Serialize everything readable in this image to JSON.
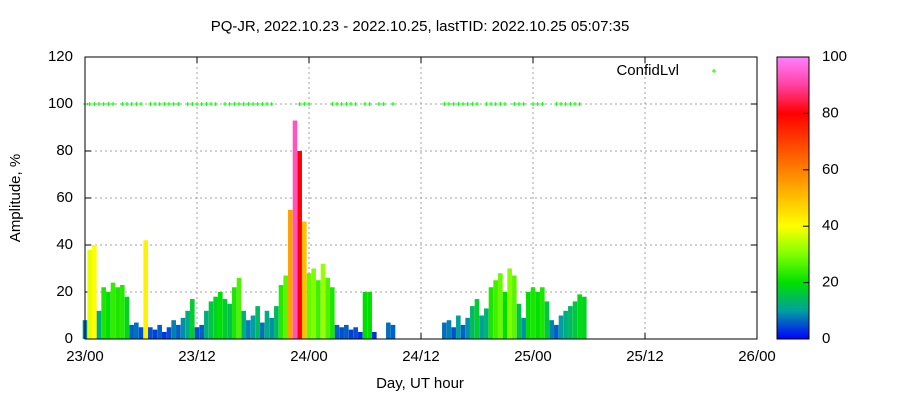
{
  "chart_data": {
    "type": "impulses",
    "title": "PQ-JR, 2022.10.23 - 2022.10.25, lastTID: 2022.10.25 05:07:35",
    "x_label": "Day, UT hour",
    "y_label": "Amplitude, %",
    "xlim": [
      0,
      72
    ],
    "xticks": [
      {
        "value": 0,
        "label": "23/00"
      },
      {
        "value": 12,
        "label": "23/12"
      },
      {
        "value": 24,
        "label": "24/00"
      },
      {
        "value": 36,
        "label": "24/12"
      },
      {
        "value": 48,
        "label": "25/00"
      },
      {
        "value": 60,
        "label": "25/12"
      },
      {
        "value": 72,
        "label": "26/00"
      }
    ],
    "ylim": [
      0,
      120
    ],
    "yticks": [
      0,
      20,
      40,
      60,
      80,
      100,
      120
    ],
    "grid": true,
    "cblim": [
      0,
      100
    ],
    "cbticks": [
      0,
      20,
      40,
      60,
      80,
      100
    ],
    "palette": [
      "#0000ff",
      "#00a0a0",
      "#00e000",
      "#80ff00",
      "#ffff00",
      "#ffc000",
      "#ff8000",
      "#ff4000",
      "#ff0000",
      "#ff40a0",
      "#ff80ff"
    ],
    "legend": "top-right",
    "series": [
      {
        "style": "impulses",
        "color": "palette",
        "x": [
          0,
          0.5,
          1,
          1.5,
          2,
          2.5,
          3,
          3.5,
          4,
          4.5,
          5,
          5.5,
          6,
          6.5,
          7,
          7.5,
          8,
          8.5,
          9,
          9.5,
          10,
          10.5,
          11,
          11.5,
          12,
          12.5,
          13,
          13.5,
          14,
          14.5,
          15,
          15.5,
          16,
          16.5,
          17,
          17.5,
          18,
          18.5,
          19,
          19.5,
          20,
          20.5,
          21,
          21.5,
          22,
          22.5,
          23,
          23.5,
          24,
          24.5,
          25,
          25.5,
          26,
          26.5,
          27,
          27.5,
          28,
          28.5,
          29,
          29.5,
          30,
          30.5,
          31,
          32.5,
          33,
          38.5,
          39,
          39.5,
          40,
          40.5,
          41,
          41.5,
          42,
          42.5,
          43,
          43.5,
          44,
          44.5,
          45,
          45.5,
          46,
          46.5,
          47,
          47.5,
          48,
          48.5,
          49,
          49.5,
          50,
          50.5,
          51,
          51.5,
          52,
          52.5,
          53,
          53.5
        ],
        "values": [
          8,
          38,
          40,
          12,
          22,
          20,
          24,
          22,
          23,
          18,
          6,
          7,
          5,
          42,
          5,
          4,
          6,
          3,
          5,
          8,
          6,
          9,
          12,
          17,
          5,
          6,
          12,
          16,
          18,
          20,
          17,
          15,
          22,
          26,
          12,
          8,
          10,
          14,
          7,
          12,
          9,
          14,
          23,
          27,
          55,
          93,
          80,
          50,
          28,
          30,
          25,
          32,
          26,
          22,
          6,
          5,
          6,
          4,
          5,
          3,
          20,
          20,
          3,
          7,
          6,
          7,
          8,
          5,
          10,
          6,
          9,
          14,
          17,
          10,
          13,
          22,
          25,
          28,
          20,
          30,
          27,
          15,
          9,
          20,
          22,
          20,
          22,
          16,
          8,
          6,
          10,
          12,
          14,
          16,
          19,
          18
        ]
      },
      {
        "name": "ConfidLvl",
        "style": "points",
        "color": "#00ff00",
        "x": [
          0,
          0.5,
          1,
          1.5,
          2,
          2.5,
          3,
          4,
          4.5,
          5,
          5.5,
          6,
          7,
          7.5,
          8,
          8.5,
          9,
          9.5,
          10,
          11,
          11.5,
          12,
          12.5,
          13,
          13.5,
          14,
          15,
          15.5,
          16,
          16.5,
          17,
          17.5,
          18,
          18.5,
          19,
          19.5,
          20,
          23,
          23.5,
          24,
          26.5,
          27,
          27.5,
          28,
          28.5,
          29,
          30,
          30.5,
          31.5,
          32,
          33,
          38.5,
          39,
          39.5,
          40,
          40.5,
          41,
          41.5,
          42,
          43,
          43.5,
          44,
          44.5,
          45,
          46,
          46.5,
          47,
          48,
          48.5,
          49,
          50.5,
          51,
          51.5,
          52,
          52.5,
          53
        ],
        "values": [
          100,
          100,
          100,
          100,
          100,
          100,
          100,
          100,
          100,
          100,
          100,
          100,
          100,
          100,
          100,
          100,
          100,
          100,
          100,
          100,
          100,
          100,
          100,
          100,
          100,
          100,
          100,
          100,
          100,
          100,
          100,
          100,
          100,
          100,
          100,
          100,
          100,
          100,
          100,
          100,
          100,
          100,
          100,
          100,
          100,
          100,
          100,
          100,
          100,
          100,
          100,
          100,
          100,
          100,
          100,
          100,
          100,
          100,
          100,
          100,
          100,
          100,
          100,
          100,
          100,
          100,
          100,
          100,
          100,
          100,
          100,
          100,
          100,
          100,
          100,
          100
        ]
      }
    ]
  }
}
